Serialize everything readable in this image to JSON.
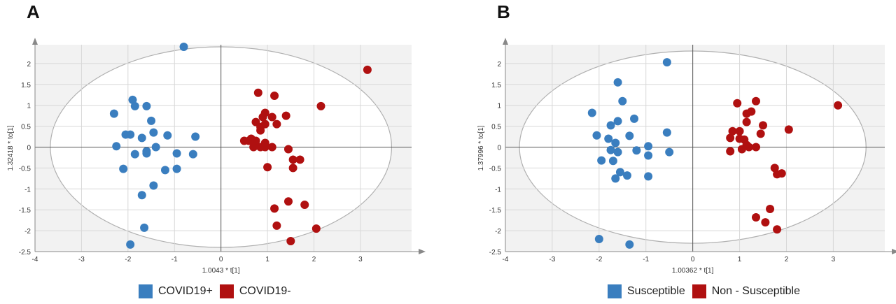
{
  "chart_data": [
    {
      "type": "scatter",
      "panel_label": "A",
      "xlabel": "1.0043 * t[1]",
      "ylabel": "1.32418 * to[1]",
      "xlim": [
        -4,
        4.1
      ],
      "ylim": [
        -2.5,
        2.45
      ],
      "xticks": [
        -4,
        -3,
        -2,
        -1,
        0,
        1,
        2,
        3
      ],
      "yticks": [
        2,
        1.5,
        1,
        0.5,
        0,
        -0.5,
        -1,
        -1.5,
        -2,
        -2.5
      ],
      "ellipse": {
        "cx": 0,
        "cy": 0,
        "rx": 3.67,
        "ry": 2.4
      },
      "grid": true,
      "legend": "bottom",
      "series": [
        {
          "name": "COVID19+",
          "color": "#3a7ebf",
          "points": [
            [
              -0.8,
              2.4
            ],
            [
              -1.9,
              1.13
            ],
            [
              -2.3,
              0.8
            ],
            [
              -1.85,
              0.98
            ],
            [
              -1.6,
              0.98
            ],
            [
              -1.5,
              0.63
            ],
            [
              -1.45,
              0.35
            ],
            [
              -1.95,
              0.3
            ],
            [
              -2.05,
              0.3
            ],
            [
              -1.7,
              0.22
            ],
            [
              -1.15,
              0.28
            ],
            [
              -0.55,
              0.25
            ],
            [
              -2.25,
              0.02
            ],
            [
              -1.4,
              0.0
            ],
            [
              -1.6,
              -0.1
            ],
            [
              -1.6,
              -0.15
            ],
            [
              -1.85,
              -0.17
            ],
            [
              -0.95,
              -0.15
            ],
            [
              -0.6,
              -0.17
            ],
            [
              -2.1,
              -0.52
            ],
            [
              -1.2,
              -0.55
            ],
            [
              -0.95,
              -0.52
            ],
            [
              -1.45,
              -0.92
            ],
            [
              -1.7,
              -1.15
            ],
            [
              -1.65,
              -1.93
            ],
            [
              -1.95,
              -2.33
            ]
          ]
        },
        {
          "name": "COVID19-",
          "color": "#b01010",
          "points": [
            [
              3.15,
              1.85
            ],
            [
              0.8,
              1.3
            ],
            [
              1.15,
              1.23
            ],
            [
              2.15,
              0.98
            ],
            [
              0.95,
              0.82
            ],
            [
              0.9,
              0.72
            ],
            [
              1.1,
              0.72
            ],
            [
              1.4,
              0.75
            ],
            [
              0.75,
              0.6
            ],
            [
              0.95,
              0.55
            ],
            [
              0.85,
              0.48
            ],
            [
              0.85,
              0.4
            ],
            [
              1.2,
              0.55
            ],
            [
              0.65,
              0.2
            ],
            [
              0.5,
              0.15
            ],
            [
              0.6,
              0.15
            ],
            [
              0.75,
              0.15
            ],
            [
              0.95,
              0.1
            ],
            [
              0.7,
              0.0
            ],
            [
              0.85,
              0.0
            ],
            [
              0.95,
              0.0
            ],
            [
              1.1,
              0.0
            ],
            [
              1.45,
              -0.05
            ],
            [
              1.55,
              -0.3
            ],
            [
              1.7,
              -0.3
            ],
            [
              1.55,
              -0.5
            ],
            [
              1.0,
              -0.48
            ],
            [
              1.45,
              -1.3
            ],
            [
              1.8,
              -1.38
            ],
            [
              1.15,
              -1.47
            ],
            [
              1.2,
              -1.88
            ],
            [
              2.05,
              -1.95
            ],
            [
              1.5,
              -2.25
            ]
          ]
        }
      ]
    },
    {
      "type": "scatter",
      "panel_label": "B",
      "xlabel": "1.00362 * t[1]",
      "ylabel": "1.37996 * to[1]",
      "xlim": [
        -4,
        4.1
      ],
      "ylim": [
        -2.5,
        2.45
      ],
      "xticks": [
        -4,
        -3,
        -2,
        -1,
        0,
        1,
        2,
        3
      ],
      "yticks": [
        2,
        1.5,
        1,
        0.5,
        0,
        -0.5,
        -1,
        -1.5,
        -2,
        -2.5
      ],
      "ellipse": {
        "cx": 0,
        "cy": 0,
        "rx": 3.7,
        "ry": 2.3
      },
      "grid": true,
      "legend": "bottom",
      "series": [
        {
          "name": "Susceptible",
          "color": "#3a7ebf",
          "points": [
            [
              -0.55,
              2.03
            ],
            [
              -1.6,
              1.55
            ],
            [
              -1.5,
              1.1
            ],
            [
              -2.15,
              0.82
            ],
            [
              -1.6,
              0.62
            ],
            [
              -1.25,
              0.68
            ],
            [
              -1.75,
              0.52
            ],
            [
              -2.05,
              0.28
            ],
            [
              -1.8,
              0.2
            ],
            [
              -1.65,
              0.1
            ],
            [
              -1.35,
              0.27
            ],
            [
              -0.55,
              0.35
            ],
            [
              -1.75,
              -0.07
            ],
            [
              -1.6,
              -0.12
            ],
            [
              -1.2,
              -0.08
            ],
            [
              -0.95,
              0.02
            ],
            [
              -0.95,
              -0.2
            ],
            [
              -0.5,
              -0.12
            ],
            [
              -1.95,
              -0.32
            ],
            [
              -1.7,
              -0.33
            ],
            [
              -1.55,
              -0.6
            ],
            [
              -1.4,
              -0.68
            ],
            [
              -1.65,
              -0.75
            ],
            [
              -0.95,
              -0.7
            ],
            [
              -2.0,
              -2.2
            ],
            [
              -1.35,
              -2.33
            ]
          ]
        },
        {
          "name": "Non - Susceptible",
          "color": "#b01010",
          "points": [
            [
              3.1,
              1.0
            ],
            [
              0.95,
              1.05
            ],
            [
              1.35,
              1.1
            ],
            [
              1.15,
              0.8
            ],
            [
              1.25,
              0.85
            ],
            [
              1.15,
              0.6
            ],
            [
              1.5,
              0.52
            ],
            [
              0.85,
              0.38
            ],
            [
              1.0,
              0.38
            ],
            [
              0.8,
              0.22
            ],
            [
              1.0,
              0.2
            ],
            [
              1.1,
              0.18
            ],
            [
              1.45,
              0.32
            ],
            [
              2.05,
              0.42
            ],
            [
              1.15,
              0.05
            ],
            [
              1.2,
              0.0
            ],
            [
              1.35,
              0.0
            ],
            [
              1.05,
              -0.05
            ],
            [
              0.8,
              -0.1
            ],
            [
              1.75,
              -0.5
            ],
            [
              1.8,
              -0.65
            ],
            [
              1.9,
              -0.63
            ],
            [
              1.65,
              -1.48
            ],
            [
              1.35,
              -1.68
            ],
            [
              1.55,
              -1.8
            ],
            [
              1.8,
              -1.97
            ]
          ]
        }
      ]
    }
  ]
}
